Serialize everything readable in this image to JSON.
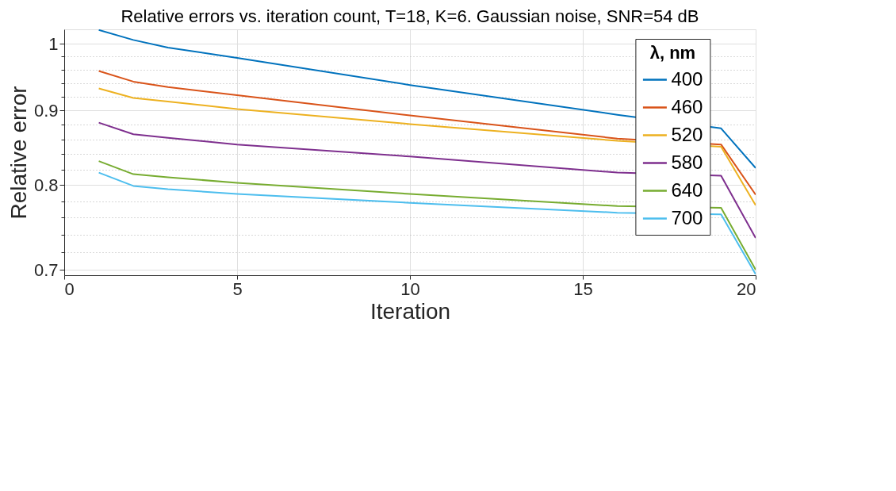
{
  "chart_data": {
    "type": "line",
    "title": "Relative errors vs. iteration count, T=18, K=6. Gaussian noise, SNR=54 dB",
    "xlabel": "Iteration",
    "ylabel": "Relative error",
    "legend_title": "λ, nm",
    "legend": "top right",
    "grid": true,
    "log": "y",
    "line_style": "solid",
    "marker": "none",
    "xlim": [
      0,
      20
    ],
    "xticks": [
      0,
      5,
      10,
      15,
      20
    ],
    "ylim": [
      0.694,
      1.023
    ],
    "yticks": [
      0.7,
      {
        "value": 0.72,
        "label": null
      },
      {
        "value": 0.74,
        "label": null
      },
      {
        "value": 0.76,
        "label": null
      },
      {
        "value": 0.78,
        "label": null
      },
      0.8,
      {
        "value": 0.82,
        "label": null
      },
      {
        "value": 0.84,
        "label": null
      },
      {
        "value": 0.86,
        "label": null
      },
      {
        "value": 0.88,
        "label": null
      },
      0.9,
      {
        "value": 0.92,
        "label": null
      },
      {
        "value": 0.94,
        "label": null
      },
      {
        "value": 0.96,
        "label": null
      },
      {
        "value": 0.98,
        "label": null
      },
      1
    ],
    "x": [
      1,
      2,
      3,
      5,
      10,
      16,
      19,
      20
    ],
    "series": [
      {
        "name": "400",
        "color": "#0072bd",
        "values": [
          1.022,
          1.006,
          0.994,
          0.978,
          0.937,
          0.894,
          0.875,
          0.822
        ]
      },
      {
        "name": "460",
        "color": "#d95319",
        "values": [
          0.958,
          0.942,
          0.934,
          0.922,
          0.893,
          0.861,
          0.853,
          0.788
        ]
      },
      {
        "name": "520",
        "color": "#edb120",
        "values": [
          0.932,
          0.918,
          0.913,
          0.902,
          0.881,
          0.858,
          0.85,
          0.775
        ]
      },
      {
        "name": "580",
        "color": "#7e2f8e",
        "values": [
          0.883,
          0.867,
          0.862,
          0.853,
          0.837,
          0.816,
          0.812,
          0.736
        ]
      },
      {
        "name": "640",
        "color": "#77ac30",
        "values": [
          0.831,
          0.814,
          0.81,
          0.803,
          0.789,
          0.774,
          0.772,
          0.7
        ]
      },
      {
        "name": "700",
        "color": "#4dbeee",
        "values": [
          0.816,
          0.799,
          0.795,
          0.789,
          0.778,
          0.766,
          0.764,
          0.695
        ]
      }
    ]
  }
}
